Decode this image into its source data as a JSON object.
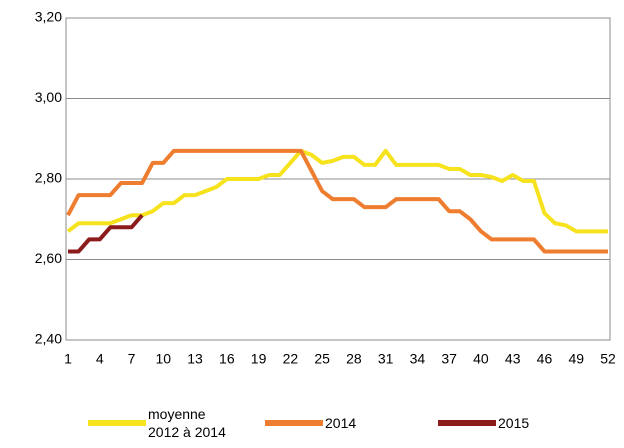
{
  "chart_data": {
    "type": "line",
    "x": [
      1,
      2,
      3,
      4,
      5,
      6,
      7,
      8,
      9,
      10,
      11,
      12,
      13,
      14,
      15,
      16,
      17,
      18,
      19,
      20,
      21,
      22,
      23,
      24,
      25,
      26,
      27,
      28,
      29,
      30,
      31,
      32,
      33,
      34,
      35,
      36,
      37,
      38,
      39,
      40,
      41,
      42,
      43,
      44,
      45,
      46,
      47,
      48,
      49,
      50,
      51,
      52
    ],
    "xlim": [
      1,
      52
    ],
    "xticks": [
      1,
      4,
      7,
      10,
      13,
      16,
      19,
      22,
      25,
      28,
      31,
      34,
      37,
      40,
      43,
      46,
      49,
      52
    ],
    "ylim": [
      2.4,
      3.2
    ],
    "yticks": [
      {
        "value": 2.4,
        "label": "2,40"
      },
      {
        "value": 2.6,
        "label": "2,60"
      },
      {
        "value": 2.8,
        "label": "2,80"
      },
      {
        "value": 3.0,
        "label": "3,00"
      },
      {
        "value": 3.2,
        "label": "3,20"
      }
    ],
    "grid": true,
    "legend": "bottom",
    "series": [
      {
        "name": "moyenne 2012 à 2014",
        "color": "#f7e21e",
        "values": [
          2.67,
          2.69,
          2.69,
          2.69,
          2.69,
          2.7,
          2.71,
          2.71,
          2.72,
          2.74,
          2.74,
          2.76,
          2.76,
          2.77,
          2.78,
          2.8,
          2.8,
          2.8,
          2.8,
          2.81,
          2.81,
          2.84,
          2.87,
          2.86,
          2.84,
          2.845,
          2.855,
          2.855,
          2.835,
          2.835,
          2.87,
          2.835,
          2.835,
          2.835,
          2.835,
          2.835,
          2.825,
          2.825,
          2.81,
          2.81,
          2.805,
          2.795,
          2.81,
          2.795,
          2.795,
          2.715,
          2.69,
          2.685,
          2.67,
          2.67,
          2.67,
          2.67
        ]
      },
      {
        "name": "2014",
        "color": "#ef7d2f",
        "values": [
          2.71,
          2.76,
          2.76,
          2.76,
          2.76,
          2.79,
          2.79,
          2.79,
          2.84,
          2.84,
          2.87,
          2.87,
          2.87,
          2.87,
          2.87,
          2.87,
          2.87,
          2.87,
          2.87,
          2.87,
          2.87,
          2.87,
          2.87,
          2.82,
          2.77,
          2.75,
          2.75,
          2.75,
          2.73,
          2.73,
          2.73,
          2.75,
          2.75,
          2.75,
          2.75,
          2.75,
          2.72,
          2.72,
          2.7,
          2.67,
          2.65,
          2.65,
          2.65,
          2.65,
          2.65,
          2.62,
          2.62,
          2.62,
          2.62,
          2.62,
          2.62,
          2.62
        ]
      },
      {
        "name": "2015",
        "color": "#8c1c1c",
        "values": [
          2.62,
          2.62,
          2.65,
          2.65,
          2.68,
          2.68,
          2.68,
          2.71,
          null,
          null,
          null,
          null,
          null,
          null,
          null,
          null,
          null,
          null,
          null,
          null,
          null,
          null,
          null,
          null,
          null,
          null,
          null,
          null,
          null,
          null,
          null,
          null,
          null,
          null,
          null,
          null,
          null,
          null,
          null,
          null,
          null,
          null,
          null,
          null,
          null,
          null,
          null,
          null,
          null,
          null,
          null,
          null
        ]
      }
    ]
  }
}
